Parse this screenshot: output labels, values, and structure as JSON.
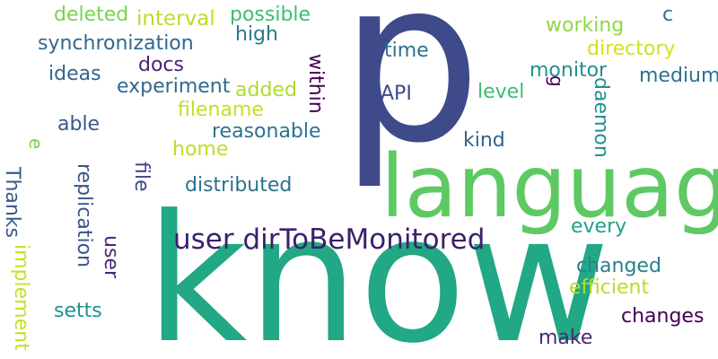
{
  "words": [
    {
      "text": "p",
      "color": "#3f4a8a"
    },
    {
      "text": "language",
      "color": "#5ec962"
    },
    {
      "text": "know",
      "color": "#22a884"
    },
    {
      "text": "user dirToBeMonitored",
      "color": "#3b1f6e"
    },
    {
      "text": "deleted",
      "color": "#7ad151"
    },
    {
      "text": "interval",
      "color": "#b8de29"
    },
    {
      "text": "possible",
      "color": "#3ebc74"
    },
    {
      "text": "c",
      "color": "#2c728e"
    },
    {
      "text": "working",
      "color": "#8fd744"
    },
    {
      "text": "synchronization",
      "color": "#31688e"
    },
    {
      "text": "high",
      "color": "#2a788e"
    },
    {
      "text": "directory",
      "color": "#d2e21b"
    },
    {
      "text": "time",
      "color": "#2d708e"
    },
    {
      "text": "ideas",
      "color": "#33638d"
    },
    {
      "text": "docs",
      "color": "#482475"
    },
    {
      "text": "monitor",
      "color": "#21918c"
    },
    {
      "text": "medium",
      "color": "#2c728e"
    },
    {
      "text": "experiment",
      "color": "#31688e"
    },
    {
      "text": "added",
      "color": "#addc30"
    },
    {
      "text": "within",
      "color": "#440154"
    },
    {
      "text": "API",
      "color": "#3e4989"
    },
    {
      "text": "level",
      "color": "#3ebc74"
    },
    {
      "text": "g",
      "color": "#440154"
    },
    {
      "text": "daemon",
      "color": "#21918c"
    },
    {
      "text": "filename",
      "color": "#c2df23"
    },
    {
      "text": "able",
      "color": "#38598c"
    },
    {
      "text": "reasonable",
      "color": "#2c728e"
    },
    {
      "text": "kind",
      "color": "#33638d"
    },
    {
      "text": "e",
      "color": "#7ad151"
    },
    {
      "text": "home",
      "color": "#bddf26"
    },
    {
      "text": "Thanks",
      "color": "#38598c"
    },
    {
      "text": "replication",
      "color": "#3b528b"
    },
    {
      "text": "file",
      "color": "#414487"
    },
    {
      "text": "distributed",
      "color": "#2d708e"
    },
    {
      "text": "every",
      "color": "#1fa187"
    },
    {
      "text": "user",
      "color": "#482878"
    },
    {
      "text": "implement",
      "color": "#c8e020"
    },
    {
      "text": "changed",
      "color": "#277f8e"
    },
    {
      "text": "efficient",
      "color": "#b5de2b"
    },
    {
      "text": "setts",
      "color": "#21918c"
    },
    {
      "text": "changes",
      "color": "#440154"
    },
    {
      "text": "make",
      "color": "#482878"
    }
  ]
}
